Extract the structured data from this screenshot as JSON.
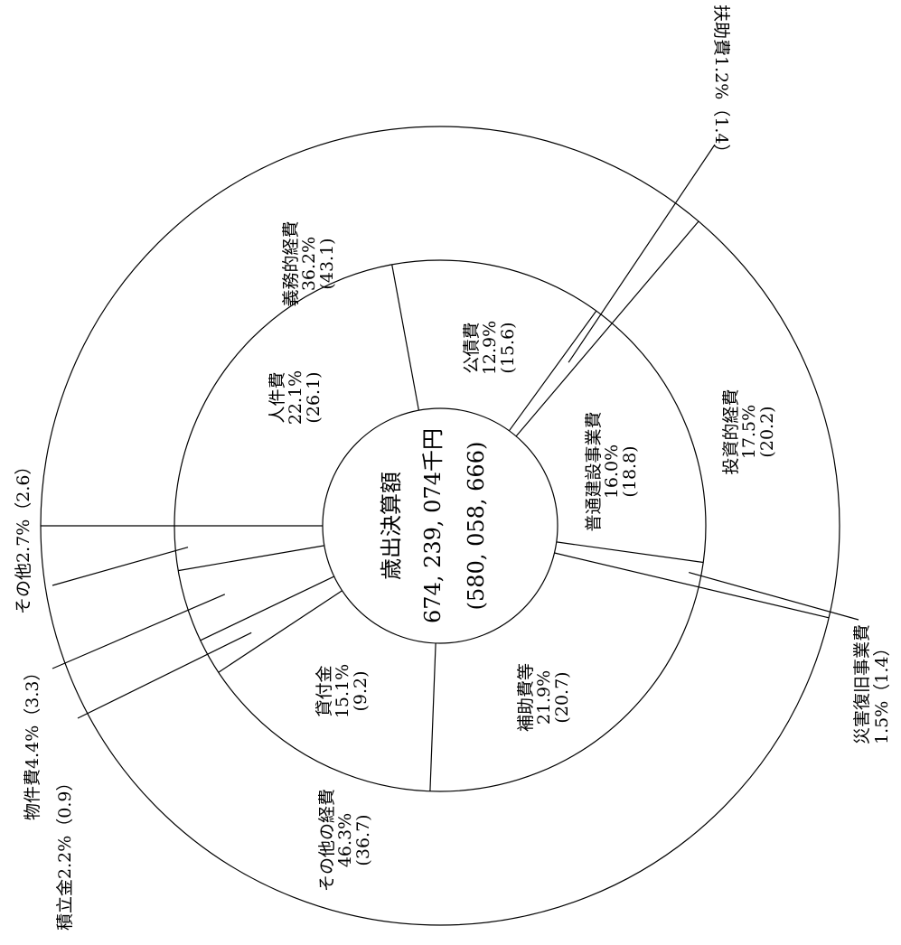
{
  "chart_data": {
    "type": "pie",
    "center": {
      "title": "歳出決算額",
      "total": "674, 239, 074千円",
      "previous_total": "(580, 058, 666)"
    },
    "outer_ring": [
      {
        "name": "義務的経費",
        "value": 36.2,
        "pct": "36.2%",
        "prev": "(43.1)"
      },
      {
        "name": "投資的経費",
        "value": 17.5,
        "pct": "17.5%",
        "prev": "(20.2)"
      },
      {
        "name": "その他の経費",
        "value": 46.3,
        "pct": "46.3%",
        "prev": "(36.7)"
      }
    ],
    "inner_ring": [
      {
        "name": "人件費",
        "value": 22.1,
        "pct": "22.1%",
        "prev": "(26.1)"
      },
      {
        "name": "公債費",
        "value": 12.9,
        "pct": "12.9%",
        "prev": "(15.6)"
      },
      {
        "name": "扶助費",
        "value": 1.2,
        "pct": "1.2%",
        "prev": "(1.4)"
      },
      {
        "name": "普通建設事業費",
        "value": 16.0,
        "pct": "16.0%",
        "prev": "(18.8)"
      },
      {
        "name": "災害復旧事業費",
        "value": 1.5,
        "pct": "1.5%",
        "prev": "(1.4)"
      },
      {
        "name": "補助費等",
        "value": 21.9,
        "pct": "21.9%",
        "prev": "(20.7)"
      },
      {
        "name": "貸付金",
        "value": 15.1,
        "pct": "15.1%",
        "prev": "(9.2)"
      },
      {
        "name": "積立金",
        "value": 2.2,
        "pct": "2.2%",
        "prev": "(0.9)"
      },
      {
        "name": "物件費",
        "value": 4.4,
        "pct": "4.4%",
        "prev": "(3.3)"
      },
      {
        "name": "その他",
        "value": 2.7,
        "pct": "2.7%",
        "prev": "(2.6)"
      }
    ],
    "callouts": {
      "fujo": "扶助費1.2%（1.4）",
      "saigai_line1": "災害復旧事業費",
      "saigai_line2": "1.5%（1.4）",
      "tsumitate": "積立金2.2%（0.9）",
      "bukken": "物件費4.4%（3.3）",
      "sonota": "その他2.7%（2.6）"
    }
  }
}
